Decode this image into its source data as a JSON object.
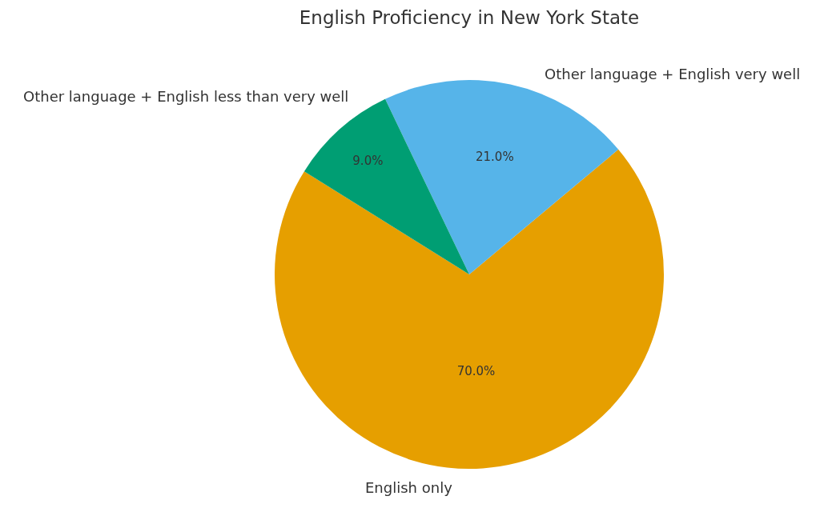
{
  "chart_data": {
    "type": "pie",
    "title": "English Proficiency in New York State",
    "categories": [
      "English only",
      "Other language + English very well",
      "Other language + English less than very well"
    ],
    "values": [
      70,
      21,
      9
    ],
    "value_labels": [
      "70.0%",
      "21.0%",
      "9.0%"
    ],
    "colors": [
      "#e69f00",
      "#56b4e9",
      "#009e73"
    ],
    "legend": false
  }
}
